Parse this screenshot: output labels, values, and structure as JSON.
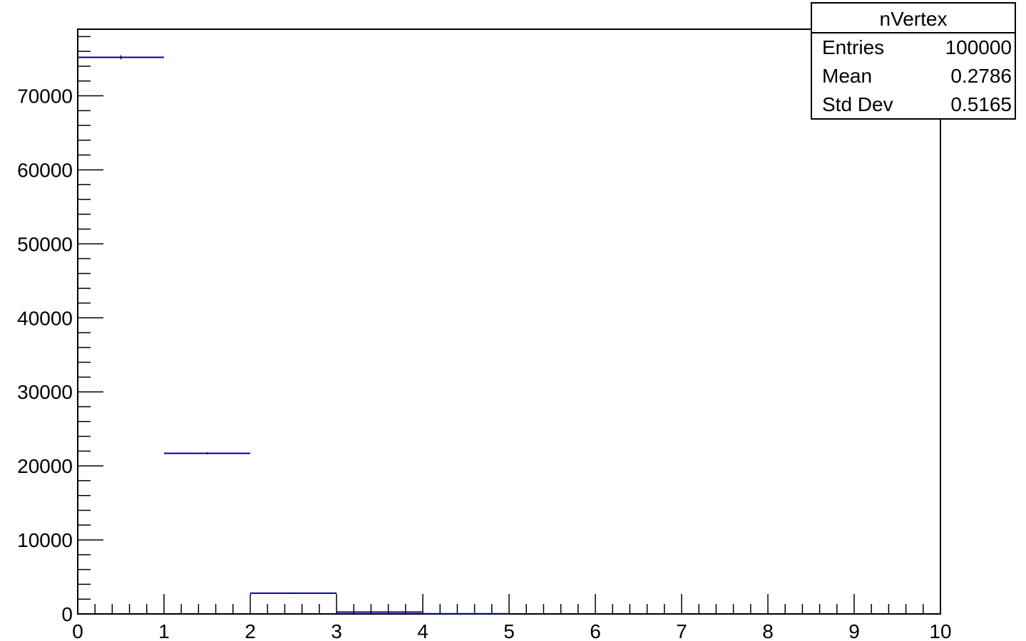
{
  "chart_data": {
    "type": "bar",
    "style": "histogram-error-markers",
    "bin_edges": [
      0,
      1,
      2,
      3,
      4,
      5,
      6,
      7,
      8,
      9,
      10
    ],
    "bin_centers": [
      0.5,
      1.5,
      2.5,
      3.5,
      4.5,
      5.5,
      6.5,
      7.5,
      8.5,
      9.5
    ],
    "values": [
      75200,
      21700,
      2800,
      250,
      20,
      0,
      0,
      0,
      0,
      0
    ],
    "xlim": [
      0,
      10
    ],
    "ylim": [
      0,
      79000
    ],
    "x_ticks": [
      "0",
      "1",
      "2",
      "3",
      "4",
      "5",
      "6",
      "7",
      "8",
      "9",
      "10"
    ],
    "y_ticks": [
      "0",
      "10000",
      "20000",
      "30000",
      "40000",
      "50000",
      "60000",
      "70000"
    ],
    "y_tick_values": [
      0,
      10000,
      20000,
      30000,
      40000,
      50000,
      60000,
      70000
    ],
    "title": "",
    "xlabel": "",
    "ylabel": "",
    "grid": false,
    "line_color": "#000099"
  },
  "stats": {
    "title": "nVertex",
    "rows": [
      {
        "label": "Entries",
        "value": "100000"
      },
      {
        "label": "Mean",
        "value": "0.2786"
      },
      {
        "label": "Std Dev",
        "value": "0.5165"
      }
    ]
  }
}
